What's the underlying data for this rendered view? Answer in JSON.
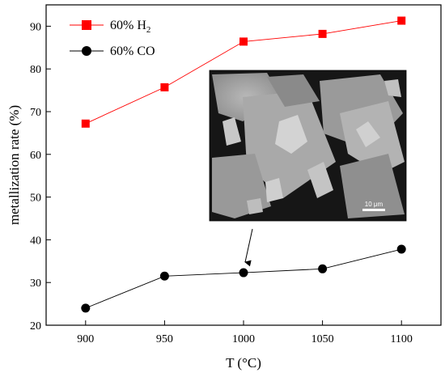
{
  "chart_data": {
    "type": "line",
    "title": "",
    "xlabel": "T (°C)",
    "ylabel": "metallization rate (%)",
    "x": [
      900,
      950,
      1000,
      1050,
      1100
    ],
    "xlim": [
      875,
      1125
    ],
    "ylim": [
      20,
      95
    ],
    "xticks": [
      900,
      950,
      1000,
      1050,
      1100
    ],
    "yticks": [
      20,
      30,
      40,
      50,
      60,
      70,
      80,
      90
    ],
    "grid": false,
    "legend_position": "top-left",
    "series": [
      {
        "name": "60% H",
        "name_subscript": "2",
        "marker": "square",
        "color": "#ff0000",
        "values": [
          67.2,
          75.7,
          86.4,
          88.2,
          91.3
        ]
      },
      {
        "name": "60% CO",
        "marker": "circle",
        "color": "#000000",
        "values": [
          24.0,
          31.5,
          32.3,
          33.2,
          37.8
        ]
      }
    ],
    "inset": {
      "type": "micrograph",
      "scale_bar_label": "10 μm",
      "points_to": {
        "series": "60% CO",
        "x": 1000
      }
    }
  }
}
